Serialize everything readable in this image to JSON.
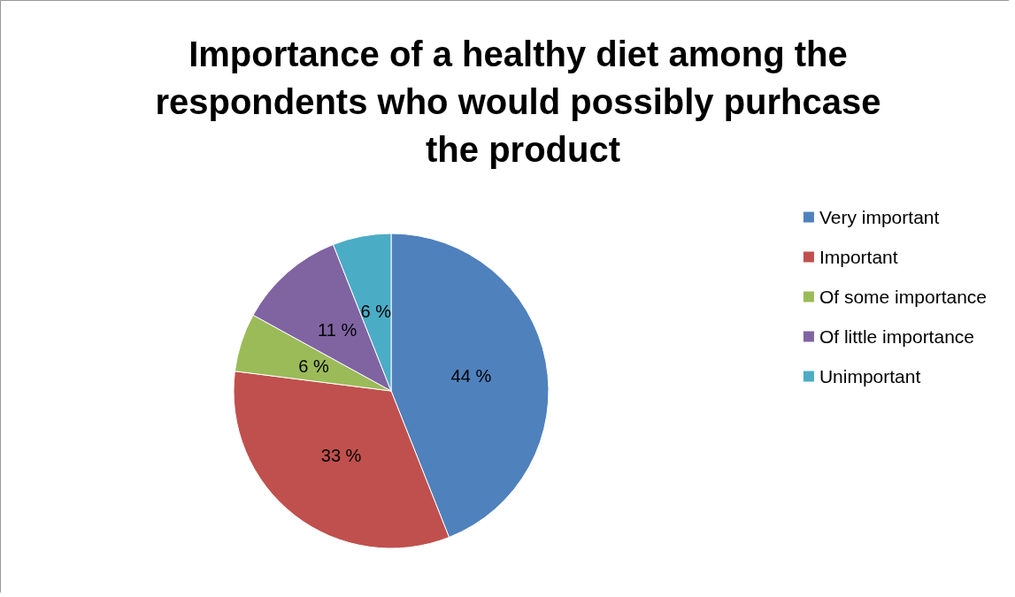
{
  "chart_data": {
    "type": "pie",
    "title": "Importance of a healthy diet among the respondents who would possibly purhcase the product",
    "categories": [
      "Very important",
      "Important",
      "Of some importance",
      "Of little importance",
      "Unimportant"
    ],
    "values": [
      44,
      33,
      6,
      11,
      6
    ],
    "colors": [
      "#4f81bd",
      "#c0504d",
      "#9bbb59",
      "#8064a2",
      "#4bacc6"
    ],
    "value_labels": [
      "44 %",
      "33 %",
      "6 %",
      "11 %",
      "6 %"
    ],
    "legend": "right"
  }
}
